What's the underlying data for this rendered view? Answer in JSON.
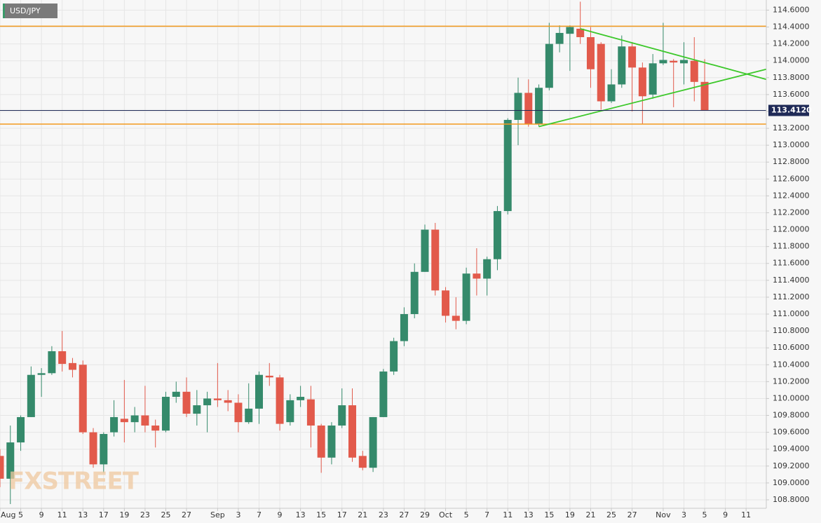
{
  "chart_data": {
    "type": "candlestick",
    "title": "USD/JPY",
    "watermark": "FXSTREET",
    "open": [
      109.32,
      109.05,
      109.48,
      109.78,
      110.28,
      110.3,
      110.56,
      110.42,
      110.4,
      109.6,
      109.22,
      109.6,
      109.76,
      109.72,
      109.8,
      109.68,
      109.62,
      110.02,
      110.08,
      109.82,
      109.92,
      110.0,
      109.98,
      109.95,
      109.72,
      109.88,
      110.27,
      110.25,
      109.72,
      109.98,
      109.99,
      109.68,
      109.3,
      109.68,
      109.92,
      109.32,
      109.18,
      109.78,
      110.32,
      110.68,
      111.0,
      111.5,
      112.0,
      111.28,
      110.98,
      110.92,
      111.48,
      111.42,
      111.65,
      112.22,
      113.3,
      113.62,
      113.25,
      113.68,
      114.2,
      114.32,
      114.38,
      114.28,
      114.2,
      113.52,
      113.72,
      114.17,
      113.92,
      113.6,
      113.97,
      114.0,
      113.97,
      114.0,
      113.75
    ],
    "high": [
      109.4,
      109.68,
      109.8,
      110.38,
      110.36,
      110.62,
      110.8,
      110.48,
      110.45,
      109.65,
      109.6,
      109.98,
      110.22,
      109.9,
      110.15,
      109.75,
      110.08,
      110.2,
      110.25,
      110.1,
      110.08,
      110.42,
      110.1,
      110.05,
      110.18,
      110.32,
      110.42,
      110.28,
      110.05,
      110.15,
      110.15,
      109.7,
      109.72,
      110.12,
      110.12,
      109.38,
      109.78,
      110.35,
      110.72,
      111.08,
      111.6,
      112.06,
      112.08,
      111.32,
      111.2,
      111.55,
      111.78,
      111.68,
      112.28,
      113.32,
      113.8,
      113.78,
      113.72,
      114.45,
      114.42,
      114.42,
      114.7,
      114.4,
      114.22,
      113.9,
      114.3,
      114.22,
      113.98,
      114.08,
      114.45,
      114.02,
      114.22,
      114.28,
      114.02
    ],
    "low": [
      108.95,
      108.75,
      109.38,
      109.78,
      110.02,
      110.28,
      110.32,
      110.25,
      109.58,
      109.18,
      109.12,
      109.55,
      109.48,
      109.6,
      109.6,
      109.42,
      109.6,
      109.95,
      109.78,
      109.68,
      109.6,
      109.9,
      109.85,
      109.6,
      109.7,
      109.7,
      110.15,
      109.62,
      109.68,
      109.9,
      109.42,
      109.12,
      109.22,
      109.65,
      109.25,
      109.15,
      109.13,
      109.78,
      110.28,
      110.62,
      110.95,
      111.5,
      111.22,
      110.9,
      110.82,
      110.88,
      111.22,
      111.22,
      111.52,
      112.18,
      113.0,
      113.22,
      113.22,
      113.65,
      114.1,
      113.88,
      114.2,
      113.68,
      113.42,
      113.5,
      113.68,
      113.4,
      113.25,
      113.55,
      113.95,
      113.45,
      113.72,
      113.52,
      113.41
    ],
    "close": [
      109.05,
      109.48,
      109.78,
      110.28,
      110.3,
      110.56,
      110.41,
      110.34,
      109.6,
      109.22,
      109.58,
      109.78,
      109.72,
      109.8,
      109.68,
      109.62,
      110.02,
      110.08,
      109.82,
      109.92,
      110.0,
      109.98,
      109.95,
      109.72,
      109.88,
      110.28,
      110.25,
      109.7,
      109.98,
      110.02,
      109.68,
      109.3,
      109.68,
      109.92,
      109.3,
      109.18,
      109.78,
      110.32,
      110.68,
      111.0,
      111.5,
      112.0,
      111.28,
      110.98,
      110.92,
      111.48,
      111.42,
      111.65,
      112.22,
      113.3,
      113.62,
      113.25,
      113.68,
      114.2,
      114.33,
      114.4,
      114.28,
      113.9,
      113.52,
      113.72,
      114.17,
      113.92,
      113.58,
      113.97,
      114.01,
      113.98,
      114.01,
      113.75,
      113.41
    ],
    "up_color": "#358a6b",
    "down_color": "#e25a4b",
    "ylim": [
      108.7,
      114.72
    ],
    "yticks": [
      {
        "value": 108.8,
        "label": "108.8000"
      },
      {
        "value": 109.0,
        "label": "109.0000"
      },
      {
        "value": 109.2,
        "label": "109.2000"
      },
      {
        "value": 109.4,
        "label": "109.4000"
      },
      {
        "value": 109.6,
        "label": "109.6000"
      },
      {
        "value": 109.8,
        "label": "109.8000"
      },
      {
        "value": 110.0,
        "label": "110.0000"
      },
      {
        "value": 110.2,
        "label": "110.2000"
      },
      {
        "value": 110.4,
        "label": "110.4000"
      },
      {
        "value": 110.6,
        "label": "110.6000"
      },
      {
        "value": 110.8,
        "label": "110.8000"
      },
      {
        "value": 111.0,
        "label": "111.0000"
      },
      {
        "value": 111.2,
        "label": "111.2000"
      },
      {
        "value": 111.4,
        "label": "111.4000"
      },
      {
        "value": 111.6,
        "label": "111.6000"
      },
      {
        "value": 111.8,
        "label": "111.8000"
      },
      {
        "value": 112.0,
        "label": "112.0000"
      },
      {
        "value": 112.2,
        "label": "112.2000"
      },
      {
        "value": 112.4,
        "label": "112.4000"
      },
      {
        "value": 112.6,
        "label": "112.6000"
      },
      {
        "value": 112.8,
        "label": "112.8000"
      },
      {
        "value": 113.0,
        "label": "113.0000"
      },
      {
        "value": 113.2,
        "label": "113.2000"
      },
      {
        "value": 113.4,
        "label": "113.4000"
      },
      {
        "value": 113.6,
        "label": "113.6000"
      },
      {
        "value": 113.8,
        "label": "113.8000"
      },
      {
        "value": 114.0,
        "label": "114.0000"
      },
      {
        "value": 114.2,
        "label": "114.2000"
      },
      {
        "value": 114.4,
        "label": "114.4000"
      },
      {
        "value": 114.6,
        "label": "114.6000"
      }
    ],
    "xlim": [
      0,
      74
    ],
    "xticks": [
      {
        "value": 0,
        "label": "Aug"
      },
      {
        "value": 2,
        "label": "5"
      },
      {
        "value": 4,
        "label": "9"
      },
      {
        "value": 6,
        "label": "11"
      },
      {
        "value": 8,
        "label": "13"
      },
      {
        "value": 10,
        "label": "17"
      },
      {
        "value": 12,
        "label": "19"
      },
      {
        "value": 14,
        "label": "23"
      },
      {
        "value": 16,
        "label": "25"
      },
      {
        "value": 18,
        "label": "27"
      },
      {
        "value": 21,
        "label": "Sep"
      },
      {
        "value": 23,
        "label": "3"
      },
      {
        "value": 25,
        "label": "7"
      },
      {
        "value": 27,
        "label": "9"
      },
      {
        "value": 29,
        "label": "13"
      },
      {
        "value": 31,
        "label": "15"
      },
      {
        "value": 33,
        "label": "17"
      },
      {
        "value": 35,
        "label": "21"
      },
      {
        "value": 37,
        "label": "23"
      },
      {
        "value": 39,
        "label": "27"
      },
      {
        "value": 41,
        "label": "29"
      },
      {
        "value": 43,
        "label": "Oct"
      },
      {
        "value": 45,
        "label": "5"
      },
      {
        "value": 47,
        "label": "7"
      },
      {
        "value": 49,
        "label": "11"
      },
      {
        "value": 51,
        "label": "13"
      },
      {
        "value": 53,
        "label": "15"
      },
      {
        "value": 55,
        "label": "19"
      },
      {
        "value": 57,
        "label": "21"
      },
      {
        "value": 59,
        "label": "25"
      },
      {
        "value": 61,
        "label": "27"
      },
      {
        "value": 64,
        "label": "Nov"
      },
      {
        "value": 66,
        "label": "3"
      },
      {
        "value": 68,
        "label": "5"
      },
      {
        "value": 70,
        "label": "9"
      },
      {
        "value": 72,
        "label": "11"
      }
    ],
    "levels": [
      {
        "value": 114.41,
        "color": "#f39a1e"
      },
      {
        "value": 113.25,
        "color": "#f39a1e"
      }
    ],
    "current_price": {
      "value": 113.412,
      "label": "113.4120",
      "color": "#1f2a57"
    },
    "trendlines": [
      {
        "x": [
          56,
          74
        ],
        "y": [
          114.38,
          113.78
        ],
        "color": "#3cc82a"
      },
      {
        "x": [
          52,
          74
        ],
        "y": [
          113.22,
          113.9
        ],
        "color": "#3cc82a"
      }
    ],
    "grid": true
  }
}
